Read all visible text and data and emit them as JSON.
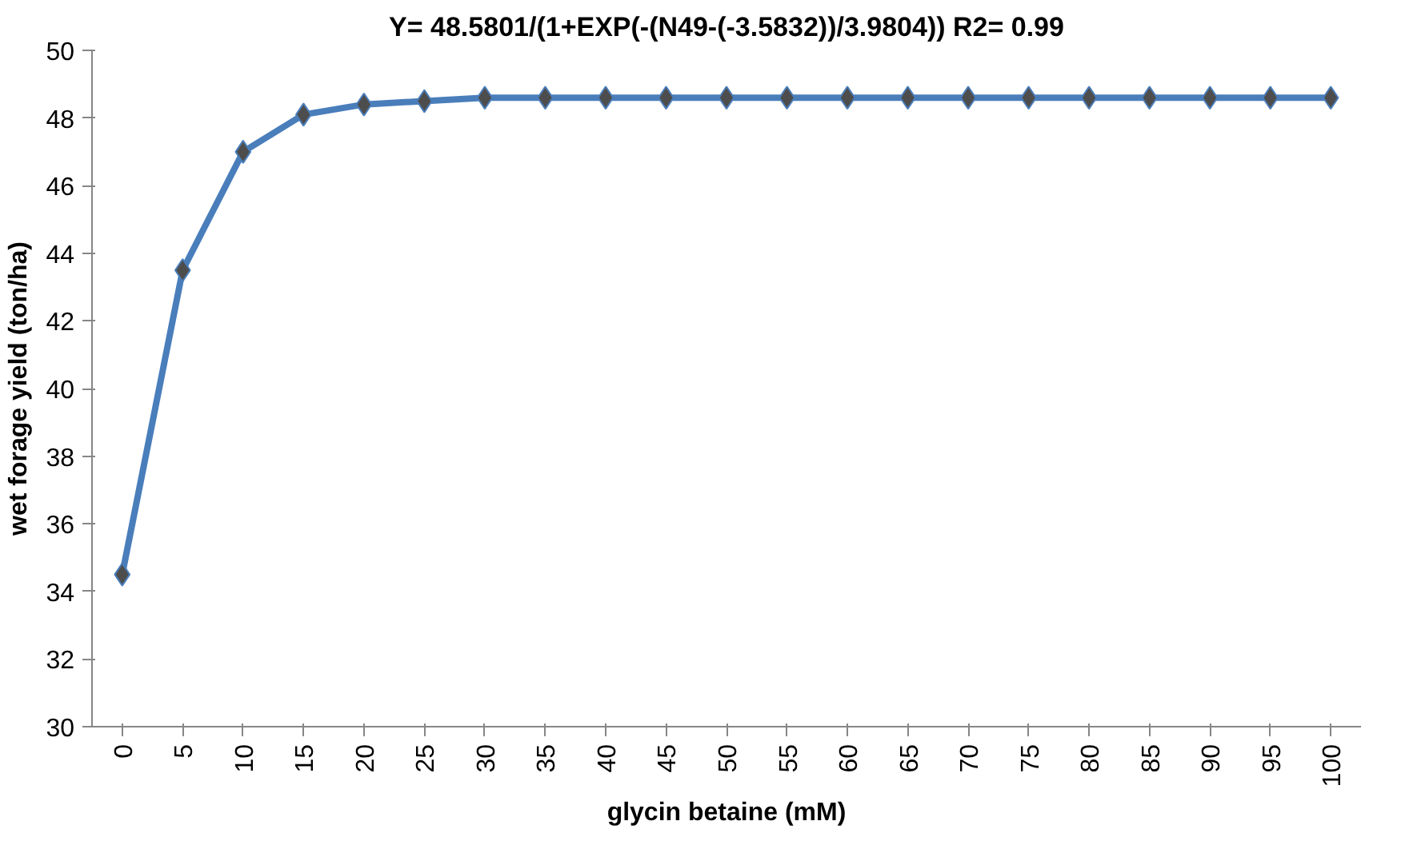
{
  "chart_data": {
    "type": "line",
    "title": "Y= 48.5801/(1+EXP(-(N49-(-3.5832))/3.9804)) R2= 0.99",
    "xlabel": "glycin betaine (mM)",
    "ylabel": "wet forage yield (ton/ha)",
    "categories": [
      "0",
      "5",
      "10",
      "15",
      "20",
      "25",
      "30",
      "35",
      "40",
      "45",
      "50",
      "55",
      "60",
      "65",
      "70",
      "75",
      "80",
      "85",
      "90",
      "95",
      "100"
    ],
    "series": [
      {
        "color": "#4a7ebb",
        "values": [
          34.5,
          43.5,
          47.0,
          48.1,
          48.4,
          48.5,
          48.6,
          48.6,
          48.6,
          48.6,
          48.6,
          48.6,
          48.6,
          48.6,
          48.6,
          48.6,
          48.6,
          48.6,
          48.6,
          48.6,
          48.6
        ]
      }
    ],
    "ylim": [
      30,
      50
    ],
    "yticks": [
      30,
      32,
      34,
      36,
      38,
      40,
      42,
      44,
      46,
      48,
      50
    ],
    "grid": false,
    "marker": "diamond",
    "line_style": "solid"
  }
}
